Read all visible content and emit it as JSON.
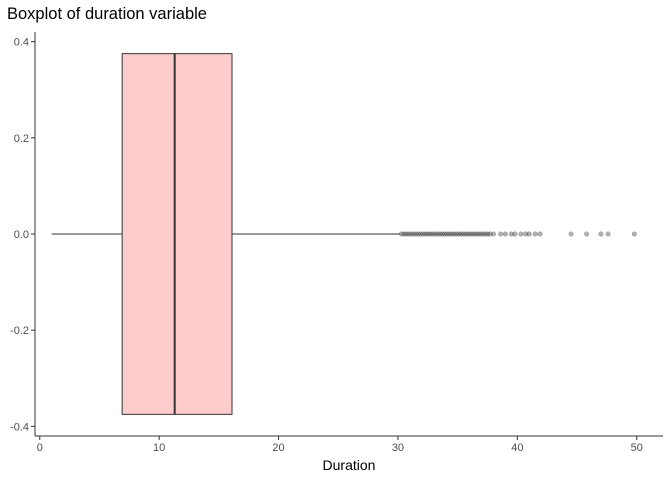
{
  "chart_data": {
    "type": "boxplot",
    "title": "Boxplot of duration variable",
    "xlabel": "Duration",
    "ylabel": "",
    "xlim": [
      -0.4,
      52.2
    ],
    "ylim": [
      -0.42,
      0.42
    ],
    "xticks": [
      "0",
      "10",
      "20",
      "30",
      "40",
      "50"
    ],
    "yticks": [
      "-0.4",
      "-0.2",
      "0.0",
      "0.2",
      "0.4"
    ],
    "grid": false,
    "box": {
      "min": 1.0,
      "q1": 6.9,
      "median": 11.3,
      "q3": 16.1,
      "whisker_high": 30.2,
      "y_center": 0.0,
      "half_width": 0.375,
      "fill": "#ffcccc",
      "stroke": "#333333"
    },
    "outliers": [
      30.3,
      30.5,
      30.7,
      30.9,
      31.1,
      31.3,
      31.5,
      31.7,
      31.9,
      32.1,
      32.3,
      32.5,
      32.7,
      32.9,
      33.1,
      33.3,
      33.5,
      33.7,
      33.9,
      34.1,
      34.3,
      34.5,
      34.7,
      34.9,
      35.1,
      35.3,
      35.5,
      35.7,
      35.9,
      36.1,
      36.3,
      36.5,
      36.7,
      36.9,
      37.1,
      37.3,
      37.5,
      37.7,
      38.0,
      38.6,
      39.0,
      39.5,
      39.8,
      40.3,
      40.7,
      41.0,
      41.5,
      41.9,
      44.5,
      45.8,
      47.0,
      47.6,
      49.8
    ]
  }
}
